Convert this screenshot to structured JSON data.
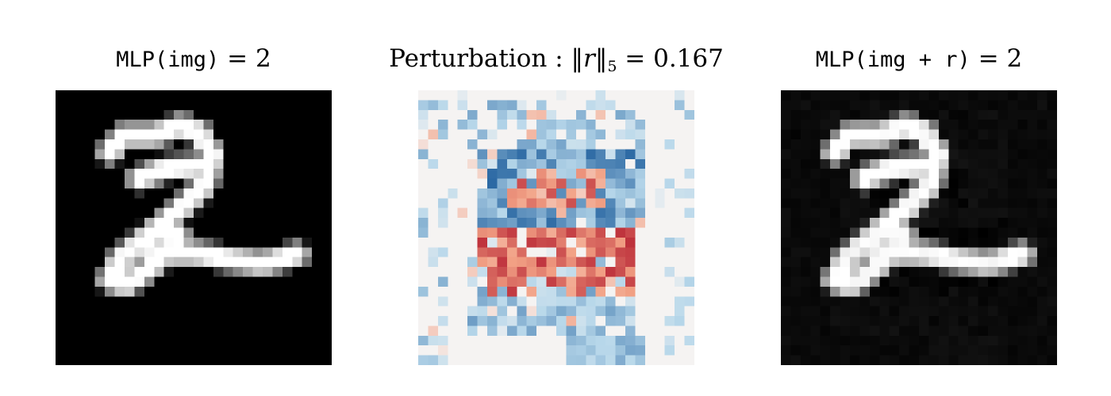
{
  "panels": {
    "original": {
      "title_prefix": "MLP(img)",
      "title_equals": " = ",
      "title_value": "2",
      "image": "greyscale 28x28 MNIST digit image"
    },
    "perturbation": {
      "title_prefix": "Perturbation : ",
      "title_norm_open": "‖",
      "title_norm_var": "r",
      "title_norm_close": "‖",
      "title_norm_sub": "5",
      "title_equals": " = ",
      "title_value": "0.167",
      "image": "red-blue diverging perturbation heatmap",
      "colors": {
        "negative_strong": "#0b4f93",
        "negative_light": "#b7d7ea",
        "neutral": "#f5f3f2",
        "positive_light": "#f2a185",
        "positive_strong": "#b2182b"
      }
    },
    "perturbed": {
      "title_prefix": "MLP(img + r)",
      "title_equals": " = ",
      "title_value": "2",
      "image": "greyscale perturbed digit image"
    }
  }
}
